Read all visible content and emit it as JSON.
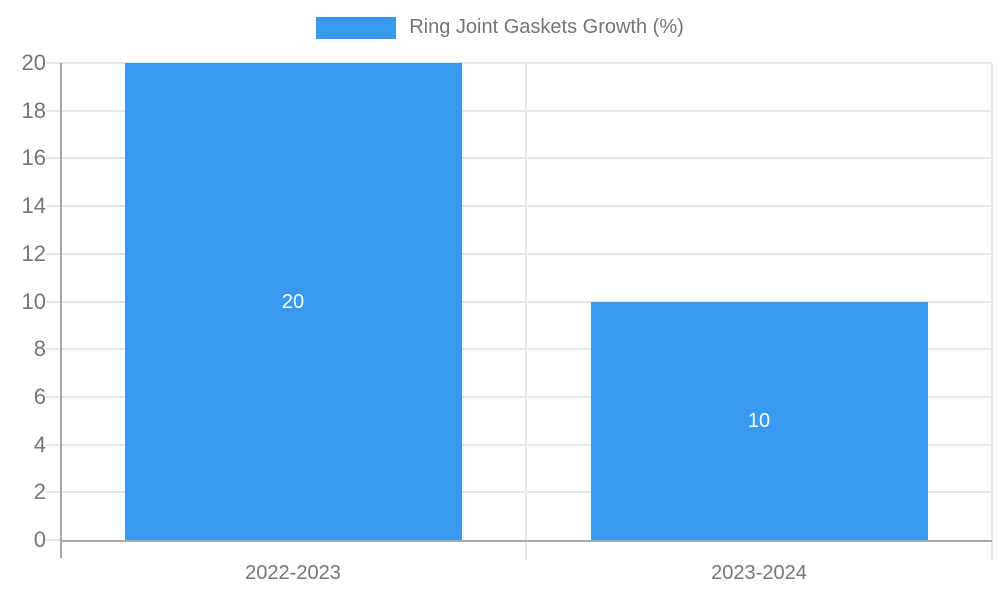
{
  "legend": {
    "label": "Ring Joint Gaskets Growth (%)"
  },
  "chart_data": {
    "type": "bar",
    "title": "Ring Joint Gaskets Growth (%)",
    "categories": [
      "2022-2023",
      "2023-2024"
    ],
    "values": [
      20,
      10
    ],
    "bar_labels": [
      "20",
      "10"
    ],
    "xlabel": "",
    "ylabel": "",
    "ylim": [
      0,
      20
    ],
    "yticks": [
      0,
      2,
      4,
      6,
      8,
      10,
      12,
      14,
      16,
      18,
      20
    ],
    "grid": true,
    "legend_position": "top-center",
    "colors": {
      "bar": "#3899EE",
      "bar_label": "#ffffff",
      "grid": "#e6e6e6",
      "axis": "#a8a8a8",
      "tick_label": "#757575"
    }
  }
}
